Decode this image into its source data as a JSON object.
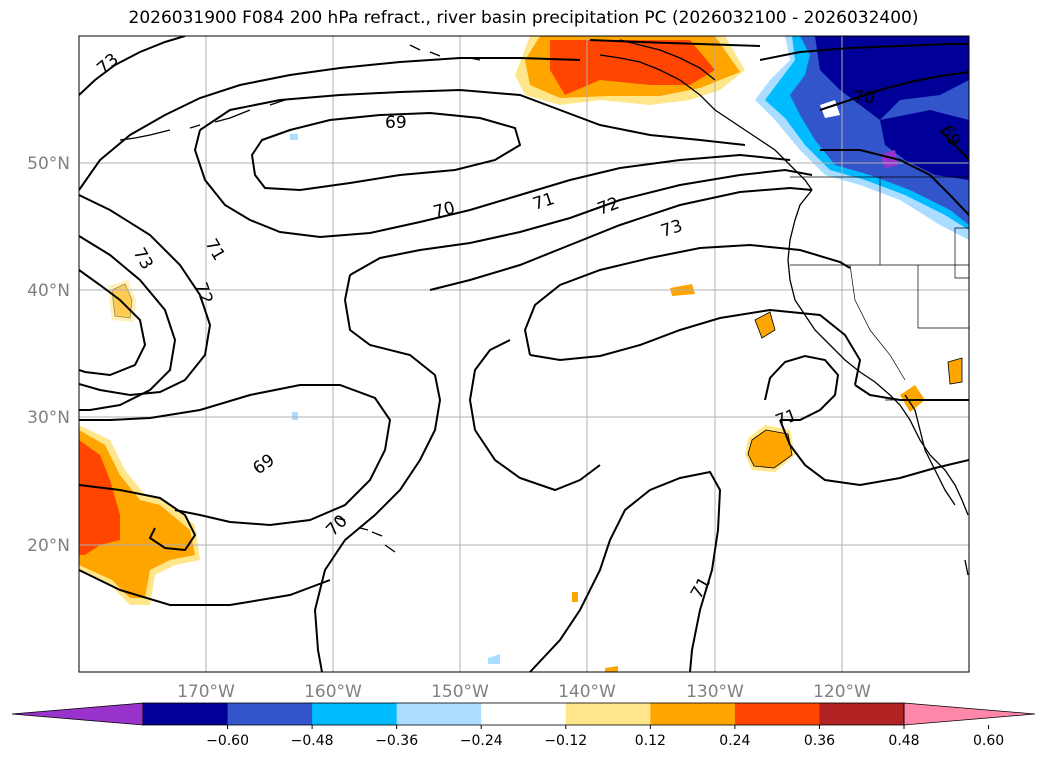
{
  "title": "2026031900 F084 200 hPa refract., river basin precipitation PC (2026032100 - 2026032400)",
  "lat_labels": [
    "50°N",
    "40°N",
    "30°N",
    "20°N"
  ],
  "lon_labels": [
    "170°W",
    "160°W",
    "150°W",
    "140°W",
    "130°W",
    "120°W"
  ],
  "contour_labels": [
    "73",
    "69",
    "70",
    "71",
    "72",
    "73",
    "73",
    "71",
    "72",
    "69",
    "70",
    "71",
    "71",
    "70",
    "69"
  ],
  "colorbar": {
    "ticks": [
      "−0.60",
      "−0.48",
      "−0.36",
      "−0.24",
      "−0.12",
      "0.12",
      "0.24",
      "0.36",
      "0.48",
      "0.60"
    ],
    "colors": [
      "#9933cc",
      "#000099",
      "#3355cc",
      "#00bbff",
      "#aaddff",
      "#ffffff",
      "#ffe68a",
      "#ffa500",
      "#ff4500",
      "#b22222",
      "#ff88aa"
    ]
  },
  "colors": {
    "contour": "#000000",
    "coast": "#000000",
    "grid": "#b0b0b0",
    "axis_label": "#808080"
  }
}
